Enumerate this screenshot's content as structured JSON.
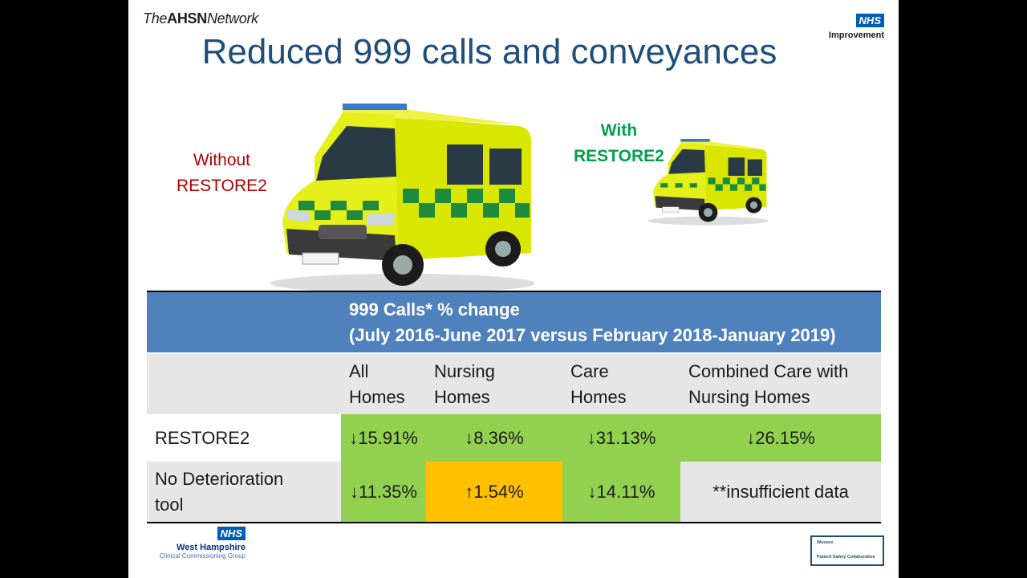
{
  "header": {
    "ahsn_prefix": "The",
    "ahsn_bold": "AHSN",
    "ahsn_suffix": "Network",
    "nhs_badge": "NHS",
    "nhs_subtitle": "Improvement"
  },
  "title": "Reduced 999 calls and conveyances",
  "labels": {
    "without_line1": "Without",
    "without_line2": "RESTORE2",
    "with_line1": "With",
    "with_line2": "RESTORE2"
  },
  "table": {
    "header_line1": "999 Calls* % change",
    "header_line2": "(July 2016-June 2017 versus February 2018-January 2019)",
    "columns": [
      {
        "line1": "All",
        "line2": "Homes"
      },
      {
        "line1": "Nursing",
        "line2": "Homes"
      },
      {
        "line1": "Care",
        "line2": "Homes"
      },
      {
        "line1": "Combined Care with",
        "line2": "Nursing Homes"
      }
    ],
    "rows": [
      {
        "label_line1": "RESTORE2",
        "label_line2": "",
        "values": [
          "↓15.91%",
          "↓8.36%",
          "↓31.13%",
          "↓26.15%"
        ]
      },
      {
        "label_line1": "No Deterioration",
        "label_line2": "tool",
        "values": [
          "↓11.35%",
          "↑1.54%",
          "↓14.11%",
          "**insufficient data"
        ]
      }
    ]
  },
  "footer": {
    "wh_badge": "NHS",
    "wh_name": "West Hampshire",
    "wh_sub": "Clinical Commissioning Group",
    "wessex_line1": "Wessex",
    "wessex_line2": "Patient Safety Collaborative"
  },
  "colors": {
    "title": "#1f4e79",
    "header_blue": "#4f81bd",
    "improved_green": "#92d050",
    "worse_amber": "#ffc000",
    "without_red": "#b00000",
    "with_green": "#00a04a"
  },
  "icons": {
    "big_image": "ambulance-large-icon",
    "small_image": "ambulance-small-icon"
  }
}
